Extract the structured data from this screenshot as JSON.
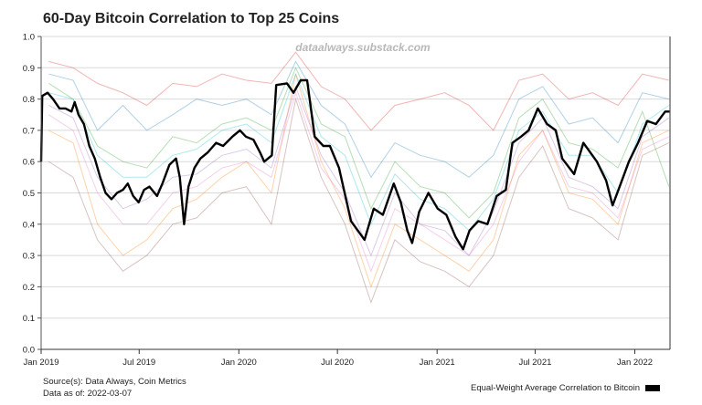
{
  "chart_data": {
    "type": "line",
    "title": "60-Day Bitcoin Correlation to Top 25 Coins",
    "watermark": "dataalways.substack.com",
    "xlabel": "",
    "ylabel": "",
    "ylim": [
      0,
      1
    ],
    "xlim": [
      "2019-01-01",
      "2022-03-07"
    ],
    "y_ticks": [
      "0.0",
      "0.1",
      "0.2",
      "0.3",
      "0.4",
      "0.5",
      "0.6",
      "0.7",
      "0.8",
      "0.9",
      "1.0"
    ],
    "x_ticks": [
      {
        "date": "2019-01-01",
        "label": "Jan 2019"
      },
      {
        "date": "2019-07-01",
        "label": "Jul 2019"
      },
      {
        "date": "2020-01-01",
        "label": "Jan 2020"
      },
      {
        "date": "2020-07-01",
        "label": "Jul 2020"
      },
      {
        "date": "2021-01-01",
        "label": "Jan 2021"
      },
      {
        "date": "2021-07-01",
        "label": "Jul 2021"
      },
      {
        "date": "2022-01-01",
        "label": "Jan 2022"
      }
    ],
    "grid": true,
    "legend": {
      "position": "bottom-right",
      "label": "Equal-Weight Average Correlation to Bitcoin",
      "color": "#000000"
    },
    "average_series": {
      "name": "Equal-Weight Average Correlation to Bitcoin",
      "color": "#000000",
      "x": [
        "2019-01-01",
        "2019-01-03",
        "2019-01-13",
        "2019-01-23",
        "2019-02-04",
        "2019-02-15",
        "2019-02-26",
        "2019-03-04",
        "2019-03-11",
        "2019-03-21",
        "2019-03-31",
        "2019-04-10",
        "2019-04-20",
        "2019-04-30",
        "2019-05-11",
        "2019-05-21",
        "2019-06-01",
        "2019-06-10",
        "2019-06-20",
        "2019-06-30",
        "2019-07-10",
        "2019-07-20",
        "2019-08-03",
        "2019-08-13",
        "2019-08-26",
        "2019-09-07",
        "2019-09-14",
        "2019-09-22",
        "2019-09-30",
        "2019-10-11",
        "2019-10-22",
        "2019-11-05",
        "2019-11-20",
        "2019-12-03",
        "2019-12-20",
        "2020-01-03",
        "2020-01-14",
        "2020-01-28",
        "2020-02-09",
        "2020-02-17",
        "2020-03-02",
        "2020-03-10",
        "2020-03-30",
        "2020-04-11",
        "2020-04-24",
        "2020-05-06",
        "2020-05-20",
        "2020-06-05",
        "2020-06-17",
        "2020-07-04",
        "2020-07-26",
        "2020-08-20",
        "2020-09-06",
        "2020-09-23",
        "2020-10-13",
        "2020-10-26",
        "2020-11-07",
        "2020-11-16",
        "2020-11-29",
        "2020-12-16",
        "2021-01-02",
        "2021-01-18",
        "2021-02-04",
        "2021-02-18",
        "2021-03-02",
        "2021-03-18",
        "2021-04-04",
        "2021-04-21",
        "2021-05-08",
        "2021-05-20",
        "2021-06-05",
        "2021-06-19",
        "2021-07-06",
        "2021-07-23",
        "2021-08-08",
        "2021-08-20",
        "2021-09-11",
        "2021-09-28",
        "2021-10-23",
        "2021-11-09",
        "2021-11-21",
        "2021-12-04",
        "2021-12-21",
        "2022-01-07",
        "2022-01-24",
        "2022-02-09",
        "2022-02-26",
        "2022-03-06"
      ],
      "y": [
        0.6,
        0.81,
        0.82,
        0.8,
        0.77,
        0.77,
        0.76,
        0.79,
        0.75,
        0.72,
        0.65,
        0.61,
        0.55,
        0.5,
        0.48,
        0.5,
        0.51,
        0.53,
        0.49,
        0.47,
        0.51,
        0.52,
        0.49,
        0.53,
        0.59,
        0.61,
        0.55,
        0.4,
        0.52,
        0.58,
        0.61,
        0.63,
        0.66,
        0.65,
        0.68,
        0.7,
        0.68,
        0.67,
        0.63,
        0.6,
        0.62,
        0.845,
        0.85,
        0.82,
        0.86,
        0.86,
        0.68,
        0.65,
        0.65,
        0.58,
        0.41,
        0.35,
        0.45,
        0.43,
        0.53,
        0.47,
        0.38,
        0.34,
        0.44,
        0.5,
        0.45,
        0.43,
        0.36,
        0.32,
        0.38,
        0.41,
        0.4,
        0.49,
        0.51,
        0.66,
        0.68,
        0.7,
        0.77,
        0.72,
        0.7,
        0.61,
        0.56,
        0.66,
        0.6,
        0.54,
        0.46,
        0.52,
        0.6,
        0.66,
        0.73,
        0.72,
        0.76,
        0.76
      ]
    },
    "coin_series_x": [
      "2019-01-15",
      "2019-03-01",
      "2019-04-15",
      "2019-06-01",
      "2019-07-15",
      "2019-09-01",
      "2019-10-15",
      "2019-12-01",
      "2020-01-15",
      "2020-03-01",
      "2020-04-15",
      "2020-06-01",
      "2020-07-15",
      "2020-09-01",
      "2020-10-15",
      "2020-12-01",
      "2021-01-15",
      "2021-03-01",
      "2021-04-15",
      "2021-06-01",
      "2021-07-15",
      "2021-09-01",
      "2021-10-15",
      "2021-12-01",
      "2022-01-15",
      "2022-03-05"
    ],
    "coin_series": [
      {
        "color": "#d62728",
        "values": [
          0.92,
          0.9,
          0.85,
          0.82,
          0.78,
          0.85,
          0.84,
          0.88,
          0.86,
          0.85,
          0.95,
          0.84,
          0.8,
          0.7,
          0.78,
          0.8,
          0.82,
          0.78,
          0.7,
          0.86,
          0.88,
          0.8,
          0.82,
          0.78,
          0.88,
          0.86
        ]
      },
      {
        "color": "#1f77b4",
        "values": [
          0.88,
          0.86,
          0.7,
          0.78,
          0.7,
          0.75,
          0.8,
          0.78,
          0.8,
          0.75,
          0.92,
          0.78,
          0.72,
          0.55,
          0.66,
          0.62,
          0.6,
          0.55,
          0.62,
          0.8,
          0.84,
          0.72,
          0.74,
          0.66,
          0.82,
          0.8
        ]
      },
      {
        "color": "#2ca02c",
        "values": [
          0.85,
          0.8,
          0.65,
          0.6,
          0.58,
          0.68,
          0.66,
          0.72,
          0.74,
          0.7,
          0.9,
          0.72,
          0.68,
          0.45,
          0.6,
          0.52,
          0.5,
          0.42,
          0.5,
          0.74,
          0.8,
          0.66,
          0.64,
          0.58,
          0.76,
          0.52
        ]
      },
      {
        "color": "#ff7f0e",
        "values": [
          0.7,
          0.66,
          0.4,
          0.3,
          0.35,
          0.45,
          0.48,
          0.55,
          0.6,
          0.5,
          0.88,
          0.6,
          0.45,
          0.2,
          0.4,
          0.35,
          0.3,
          0.25,
          0.35,
          0.62,
          0.7,
          0.5,
          0.48,
          0.4,
          0.66,
          0.7
        ]
      },
      {
        "color": "#9467bd",
        "values": [
          0.78,
          0.74,
          0.55,
          0.45,
          0.48,
          0.55,
          0.56,
          0.62,
          0.64,
          0.58,
          0.84,
          0.62,
          0.5,
          0.3,
          0.5,
          0.4,
          0.38,
          0.3,
          0.44,
          0.66,
          0.74,
          0.55,
          0.52,
          0.45,
          0.68,
          0.74
        ]
      },
      {
        "color": "#8c564b",
        "values": [
          0.6,
          0.55,
          0.35,
          0.25,
          0.3,
          0.4,
          0.42,
          0.5,
          0.52,
          0.4,
          0.8,
          0.55,
          0.4,
          0.15,
          0.35,
          0.28,
          0.25,
          0.2,
          0.3,
          0.55,
          0.65,
          0.45,
          0.42,
          0.35,
          0.62,
          0.66
        ]
      },
      {
        "color": "#17becf",
        "values": [
          0.82,
          0.8,
          0.62,
          0.55,
          0.55,
          0.62,
          0.64,
          0.7,
          0.72,
          0.66,
          0.88,
          0.68,
          0.62,
          0.4,
          0.56,
          0.48,
          0.45,
          0.38,
          0.48,
          0.7,
          0.76,
          0.62,
          0.62,
          0.5,
          0.72,
          0.78
        ]
      },
      {
        "color": "#e377c2",
        "values": [
          0.75,
          0.7,
          0.5,
          0.4,
          0.4,
          0.5,
          0.52,
          0.58,
          0.6,
          0.55,
          0.82,
          0.58,
          0.48,
          0.25,
          0.45,
          0.4,
          0.35,
          0.3,
          0.4,
          0.6,
          0.7,
          0.52,
          0.5,
          0.42,
          0.64,
          0.68
        ]
      }
    ]
  },
  "footer": {
    "source": "Source(s): Data Always, Coin Metrics",
    "data_as_of": "Data as of: 2022-03-07"
  }
}
